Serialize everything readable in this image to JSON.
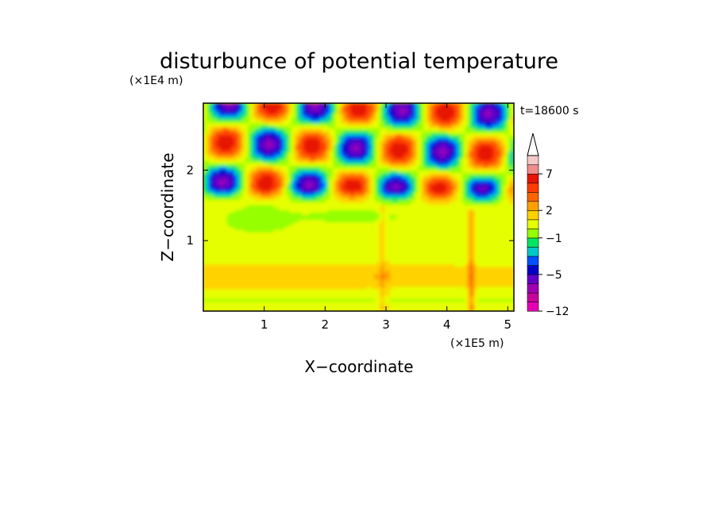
{
  "chart_data": {
    "type": "heatmap",
    "title": "disturbunce of potential temperature",
    "time_label": "t=18600 s",
    "xlabel": "X−coordinate",
    "ylabel": "Z−coordinate",
    "x_unit": "(×1E5 m)",
    "y_unit": "(×1E4 m)",
    "xlim": [
      0,
      5.1
    ],
    "ylim": [
      0,
      2.95
    ],
    "xticks": [
      1,
      2,
      3,
      4,
      5
    ],
    "xtick_labels": [
      "1",
      "2",
      "3",
      "4",
      "5"
    ],
    "yticks": [
      1,
      2
    ],
    "ytick_labels": [
      "1",
      "2"
    ],
    "colorbar": {
      "levels": [
        -12,
        -10,
        -8,
        -6,
        -5,
        -4,
        -3,
        -2,
        -1,
        0,
        1,
        2,
        3,
        4,
        5,
        7,
        8,
        9
      ],
      "extend": "max",
      "colors": [
        "#e600b4",
        "#c8009a",
        "#a000b4",
        "#6400c8",
        "#0000c8",
        "#0050ff",
        "#00c8c8",
        "#00e664",
        "#96ff00",
        "#e6ff00",
        "#ffd200",
        "#ffa000",
        "#ff6400",
        "#ff3c00",
        "#e61400",
        "#f08c8c",
        "#f5c8c8",
        "#ffffff"
      ],
      "tick_values": [
        7,
        2,
        -1,
        -5,
        -12
      ],
      "tick_labels": [
        "7",
        "2",
        "−1",
        "−5",
        "−12"
      ]
    },
    "field_regions": [
      {
        "z_range": [
          0.0,
          0.3
        ],
        "dominant_value": 0.5,
        "note": "yellow / light orange"
      },
      {
        "z_range": [
          0.3,
          0.8
        ],
        "dominant_value": 1.5,
        "note": "orange bands with streaks near x=2.9, x=4.4"
      },
      {
        "z_range": [
          0.8,
          1.5
        ],
        "dominant_value": 0.5,
        "note": "yellow"
      },
      {
        "z_range": [
          1.2,
          1.6
        ],
        "dominant_value": -0.5,
        "note": "green patches near x=0.9 and x=2.5"
      },
      {
        "z_range": [
          1.5,
          2.95
        ],
        "dominant_value": 0,
        "note": "gravity-wave pattern, alternating -6 to 5"
      }
    ]
  }
}
